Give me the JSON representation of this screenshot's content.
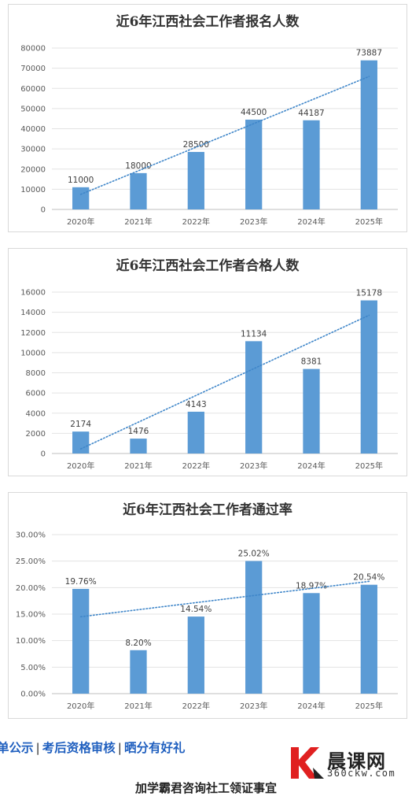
{
  "chart_data": [
    {
      "type": "bar",
      "title": "近6年江西社会工作者报名人数",
      "categories": [
        "2020年",
        "2021年",
        "2022年",
        "2023年",
        "2024年",
        "2025年"
      ],
      "values": [
        11000,
        18000,
        28500,
        44500,
        44187,
        73887
      ],
      "data_labels": [
        "11000",
        "18000",
        "28500",
        "44500",
        "44187",
        "73887"
      ],
      "ylim": [
        0,
        80000
      ],
      "yticks": [
        "0",
        "10000",
        "20000",
        "30000",
        "40000",
        "50000",
        "60000",
        "70000",
        "80000"
      ],
      "trendline": "linear, dotted",
      "grid": true,
      "bar_color": "#5b9bd5"
    },
    {
      "type": "bar",
      "title": "近6年江西社会工作者合格人数",
      "categories": [
        "2020年",
        "2021年",
        "2022年",
        "2023年",
        "2024年",
        "2025年"
      ],
      "values": [
        2174,
        1476,
        4143,
        11134,
        8381,
        15178
      ],
      "data_labels": [
        "2174",
        "1476",
        "4143",
        "11134",
        "8381",
        "15178"
      ],
      "ylim": [
        0,
        16000
      ],
      "yticks": [
        "0",
        "2000",
        "4000",
        "6000",
        "8000",
        "10000",
        "12000",
        "14000",
        "16000"
      ],
      "trendline": "linear, dotted",
      "grid": true,
      "bar_color": "#5b9bd5"
    },
    {
      "type": "bar",
      "title": "近6年江西社会工作者通过率",
      "categories": [
        "2020年",
        "2021年",
        "2022年",
        "2023年",
        "2024年",
        "2025年"
      ],
      "values": [
        19.76,
        8.2,
        14.54,
        25.02,
        18.97,
        20.54
      ],
      "data_labels": [
        "19.76%",
        "8.20%",
        "14.54%",
        "25.02%",
        "18.97%",
        "20.54%"
      ],
      "ylim": [
        0,
        30
      ],
      "yticks": [
        "0.00%",
        "5.00%",
        "10.00%",
        "15.00%",
        "20.00%",
        "25.00%",
        "30.00%"
      ],
      "trendline": "linear, dotted",
      "grid": true,
      "bar_color": "#5b9bd5"
    }
  ],
  "footer": {
    "links": [
      "单公示",
      "考后资格审核",
      "晒分有好礼"
    ],
    "separator": "|",
    "slogan": "加学霸君咨询社工领证事宜",
    "logo_name": "晨课网",
    "logo_url": "360ckw.com",
    "link_color": "#1f5fbf",
    "logo_red": "#e02020"
  }
}
